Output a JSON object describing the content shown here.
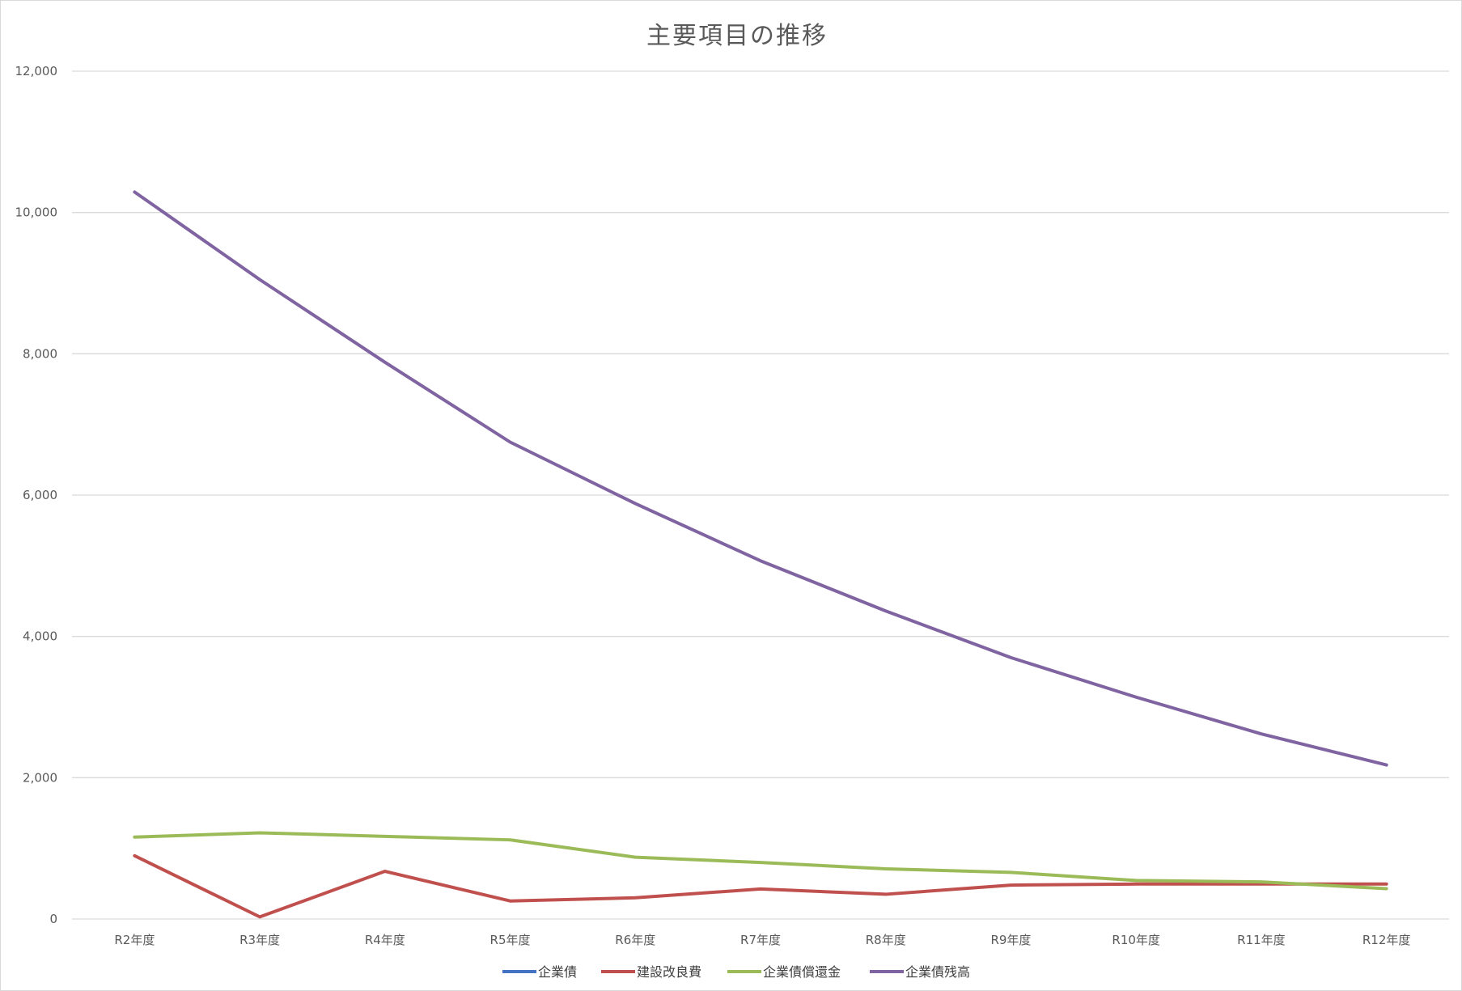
{
  "chart_data": {
    "type": "line",
    "title": "主要項目の推移",
    "xlabel": "",
    "ylabel": "",
    "categories": [
      "R2年度",
      "R3年度",
      "R4年度",
      "R5年度",
      "R6年度",
      "R7年度",
      "R8年度",
      "R9年度",
      "R10年度",
      "R11年度",
      "R12年度"
    ],
    "ylim": [
      0,
      12000
    ],
    "yticks": [
      "0",
      "2,000",
      "4,000",
      "6,000",
      "8,000",
      "10,000",
      "12,000"
    ],
    "grid": true,
    "legend_position": "bottom",
    "series": [
      {
        "name": "企業債",
        "color": "#4472c4",
        "values": [
          null,
          null,
          null,
          null,
          null,
          null,
          null,
          null,
          null,
          null,
          null
        ]
      },
      {
        "name": "建設改良費",
        "color": "#c0504d",
        "values": [
          895,
          30,
          675,
          255,
          300,
          425,
          350,
          480,
          495,
          495,
          495
        ]
      },
      {
        "name": "企業債償還金",
        "color": "#9bbb59",
        "values": [
          1160,
          1220,
          1170,
          1120,
          875,
          800,
          710,
          660,
          545,
          525,
          430
        ]
      },
      {
        "name": "企業債残高",
        "color": "#8064a2",
        "values": [
          10290,
          9050,
          7880,
          6750,
          5880,
          5070,
          4360,
          3700,
          3140,
          2620,
          2180
        ]
      }
    ]
  }
}
